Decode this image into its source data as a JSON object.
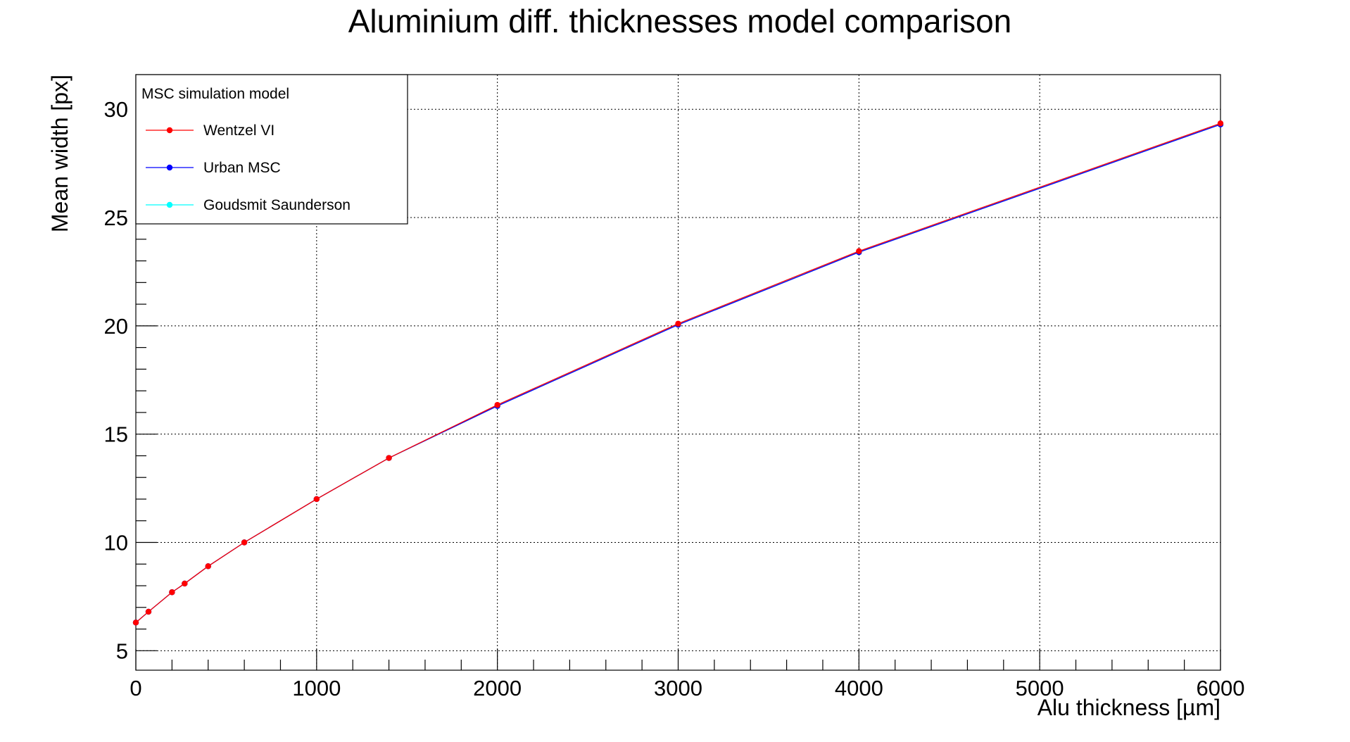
{
  "chart_data": {
    "type": "line",
    "title": "Aluminium diff. thicknesses model comparison",
    "xlabel": "Alu thickness [µm]",
    "ylabel": "Mean width [px]",
    "xlim": [
      0,
      6000
    ],
    "ylim": [
      4.1,
      31.6
    ],
    "x_ticks": [
      0,
      1000,
      2000,
      3000,
      4000,
      5000,
      6000
    ],
    "x_tick_labels": [
      "0",
      "1000",
      "2000",
      "3000",
      "4000",
      "5000",
      "6000"
    ],
    "y_ticks": [
      5,
      10,
      15,
      20,
      25,
      30
    ],
    "y_tick_labels": [
      "5",
      "10",
      "15",
      "20",
      "25",
      "30"
    ],
    "grid": true,
    "legend": {
      "title": "MSC simulation model",
      "placement": "top-left"
    },
    "x": [
      0,
      70,
      200,
      270,
      400,
      600,
      1000,
      1400,
      2000,
      3000,
      4000,
      6000
    ],
    "series": [
      {
        "name": "Wentzel VI",
        "color": "#ff0000",
        "values": [
          6.3,
          6.8,
          7.7,
          8.1,
          8.9,
          10.0,
          12.0,
          13.9,
          16.35,
          20.1,
          23.45,
          29.35
        ]
      },
      {
        "name": "Urban MSC",
        "color": "#0000ff",
        "values": [
          6.3,
          6.8,
          7.7,
          8.1,
          8.9,
          10.0,
          12.0,
          13.9,
          16.3,
          20.05,
          23.4,
          29.3
        ]
      },
      {
        "name": "Goudsmit Saunderson",
        "color": "#00ffff",
        "values": [
          6.3,
          6.8,
          7.7,
          8.1,
          8.9,
          10.0,
          12.0,
          13.9,
          16.3,
          20.05,
          23.4,
          29.3
        ]
      }
    ]
  }
}
